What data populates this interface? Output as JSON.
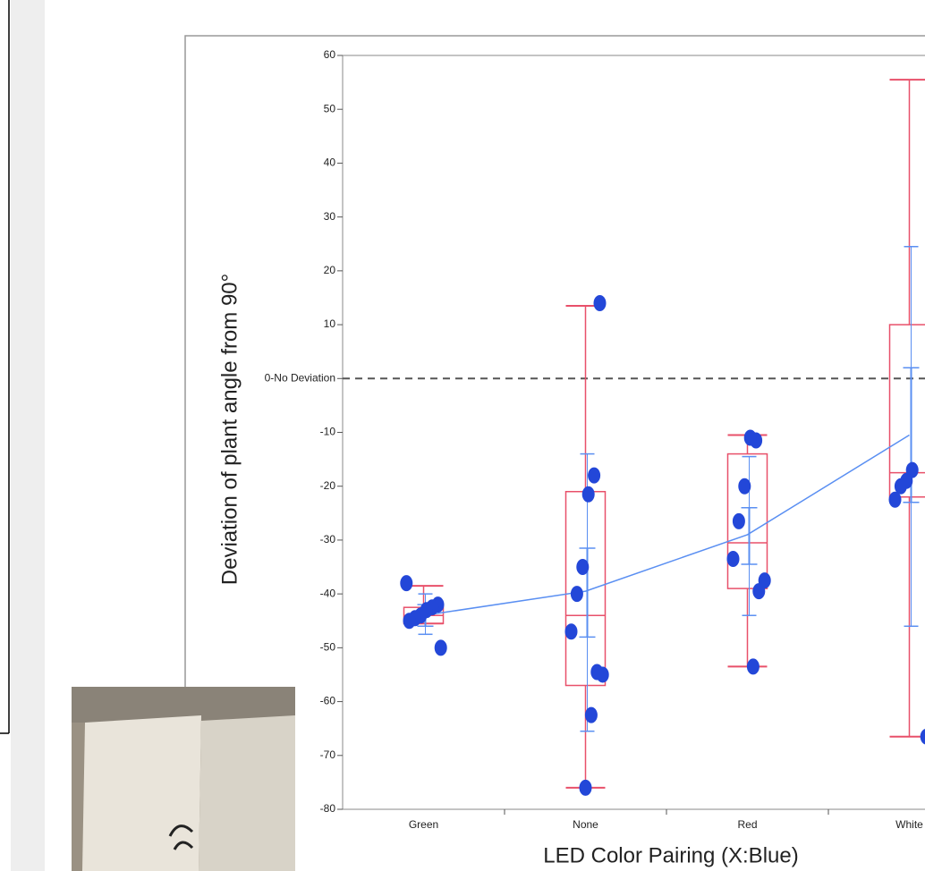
{
  "chart_data": {
    "type": "box",
    "y_label": "Deviation of plant angle from 90°",
    "x_label": "LED Color Pairing (X:Blue)",
    "categories": [
      "Green",
      "None",
      "Red",
      "White"
    ],
    "ylim": [
      -80,
      60
    ],
    "yticks": [
      60,
      50,
      40,
      30,
      20,
      10,
      {
        "value": 0,
        "label": "0-No Deviation"
      },
      -10,
      -20,
      -30,
      -40,
      -50,
      -60,
      -70,
      -80
    ],
    "whisker_high": [
      -38.5,
      13.5,
      -10.5,
      55.5
    ],
    "q3": [
      -42.5,
      -21,
      -14,
      10
    ],
    "median": [
      -44,
      -44,
      -30.5,
      -17.5
    ],
    "q1": [
      -45.5,
      -57,
      -39,
      -22
    ],
    "whisker_low": [
      -45.5,
      -76,
      -53.5,
      -66.5
    ],
    "mean": [
      -44,
      -39.5,
      -29,
      -10.5
    ],
    "mean_err_high": [
      -42,
      -31.5,
      -24,
      2
    ],
    "mean_err_low": [
      -46,
      -48,
      -34.5,
      -23
    ],
    "std_high": [
      -40,
      -14,
      -14.5,
      24.5
    ],
    "std_low": [
      -47.5,
      -65.5,
      -44,
      -46
    ],
    "points": [
      [
        -38,
        -42,
        -42.5,
        -43,
        -44,
        -44.5,
        -45,
        -50
      ],
      [
        14,
        -18,
        -21.5,
        -35,
        -40,
        -47,
        -55,
        -54.5,
        -62.5,
        -76
      ],
      [
        -11.5,
        -11,
        -20,
        -26.5,
        -33.5,
        -37.5,
        -39.5,
        -53.5
      ],
      [
        -17,
        -19,
        -20,
        -22.5,
        -66.5
      ]
    ],
    "box_color": "#e8506a",
    "point_color": "#2347d8",
    "mean_color": "#5a8ff2"
  }
}
